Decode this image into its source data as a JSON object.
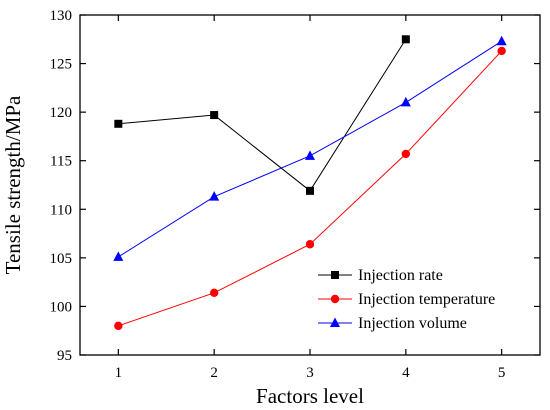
{
  "chart_data": {
    "type": "line",
    "xlabel": "Factors level",
    "ylabel": "Tensile strength/MPa",
    "xlim": [
      0.6,
      5.4
    ],
    "ylim": [
      95,
      130
    ],
    "x_ticks": [
      1,
      2,
      3,
      4,
      5
    ],
    "y_ticks": [
      95,
      100,
      105,
      110,
      115,
      120,
      125,
      130
    ],
    "grid": false,
    "legend_position": "bottom-right",
    "series": [
      {
        "name": "Injection rate",
        "color": "#000000",
        "marker": "square",
        "x": [
          1,
          2,
          3,
          4
        ],
        "values": [
          118.8,
          119.7,
          111.9,
          127.5
        ]
      },
      {
        "name": "Injection temperature",
        "color": "#ff0000",
        "marker": "circle",
        "x": [
          1,
          2,
          3,
          4,
          5
        ],
        "values": [
          98.0,
          101.4,
          106.4,
          115.7,
          126.3
        ]
      },
      {
        "name": "Injection volume",
        "color": "#0000ff",
        "marker": "triangle",
        "x": [
          1,
          2,
          3,
          4,
          5
        ],
        "values": [
          105.1,
          111.3,
          115.5,
          121.0,
          127.3
        ]
      }
    ]
  }
}
